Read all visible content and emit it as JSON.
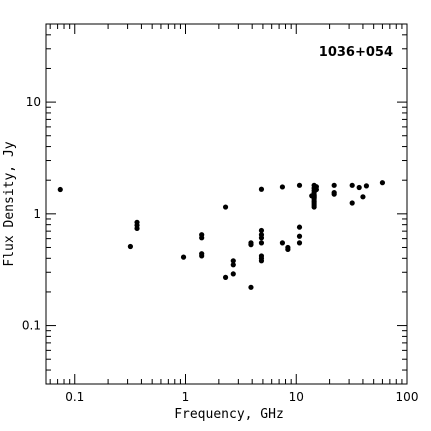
{
  "chart_data": {
    "type": "scatter",
    "title": "1036+054",
    "xlabel": "Frequency, GHz",
    "ylabel": "Flux Density, Jy",
    "xscale": "log",
    "yscale": "log",
    "xlim": [
      0.055,
      100
    ],
    "ylim": [
      0.03,
      50
    ],
    "grid": false,
    "x_tick_labels": [
      "0.1",
      "1",
      "10",
      "100"
    ],
    "y_tick_labels": [
      "0.1",
      "1",
      "10"
    ],
    "series": [
      {
        "points": [
          [
            0.074,
            1.65
          ],
          [
            0.318,
            0.51
          ],
          [
            0.365,
            0.84
          ],
          [
            0.365,
            0.79
          ],
          [
            0.365,
            0.74
          ],
          [
            0.96,
            0.41
          ],
          [
            1.4,
            0.65
          ],
          [
            1.4,
            0.61
          ],
          [
            1.4,
            0.44
          ],
          [
            1.4,
            0.42
          ],
          [
            2.3,
            1.15
          ],
          [
            2.3,
            0.27
          ],
          [
            2.7,
            0.38
          ],
          [
            2.7,
            0.35
          ],
          [
            2.7,
            0.29
          ],
          [
            3.9,
            0.55
          ],
          [
            3.9,
            0.53
          ],
          [
            3.9,
            0.22
          ],
          [
            4.85,
            1.66
          ],
          [
            4.85,
            0.71
          ],
          [
            4.85,
            0.65
          ],
          [
            4.85,
            0.61
          ],
          [
            4.85,
            0.55
          ],
          [
            4.85,
            0.42
          ],
          [
            4.85,
            0.4
          ],
          [
            4.85,
            0.38
          ],
          [
            7.5,
            1.74
          ],
          [
            7.5,
            0.55
          ],
          [
            8.4,
            0.5
          ],
          [
            8.4,
            0.48
          ],
          [
            10.7,
            1.8
          ],
          [
            10.7,
            0.76
          ],
          [
            10.7,
            0.63
          ],
          [
            10.7,
            0.55
          ],
          [
            14.5,
            1.8
          ],
          [
            14.5,
            1.7
          ],
          [
            14.5,
            1.62
          ],
          [
            14.5,
            1.55
          ],
          [
            14.5,
            1.48
          ],
          [
            14.5,
            1.42
          ],
          [
            14.5,
            1.36
          ],
          [
            14.5,
            1.3
          ],
          [
            14.5,
            1.25
          ],
          [
            14.5,
            1.2
          ],
          [
            14.5,
            1.15
          ],
          [
            14.5,
            1.45
          ],
          [
            14.5,
            1.4
          ],
          [
            13.8,
            1.45
          ],
          [
            15.2,
            1.75
          ],
          [
            15.2,
            1.65
          ],
          [
            22,
            1.8
          ],
          [
            22,
            1.55
          ],
          [
            22,
            1.5
          ],
          [
            32,
            1.8
          ],
          [
            32,
            1.25
          ],
          [
            37,
            1.72
          ],
          [
            40,
            1.42
          ],
          [
            43,
            1.78
          ],
          [
            60,
            1.9
          ]
        ]
      }
    ]
  }
}
